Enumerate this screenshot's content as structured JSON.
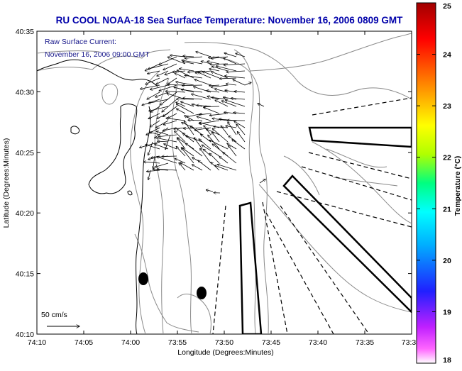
{
  "map": {
    "title": "RU COOL  NOAA-18  Sea Surface Temperature:  November 16, 2006 0809 GMT",
    "overlay_label_line1": "Raw Surface Current:",
    "overlay_label_line2": "November 16, 2006 09:00 GMT",
    "xlabel": "Longitude (Degrees:Minutes)",
    "ylabel": "Latitude (Degrees:Minutes)",
    "x_ticks": [
      "74:10",
      "74:05",
      "74:00",
      "73:55",
      "73:50",
      "73:45",
      "73:40",
      "73:35",
      "73:3"
    ],
    "y_ticks": [
      "40:35",
      "40:30",
      "40:25",
      "40:20",
      "40:15",
      "40:10"
    ],
    "scale_label": "50 cm/s"
  },
  "colorbar": {
    "label": "Temperature (°C)",
    "ticks": [
      "25",
      "24",
      "23",
      "22",
      "21",
      "20",
      "19",
      "18"
    ],
    "range": [
      18,
      25
    ],
    "colors": [
      "#ff66ff",
      "#c020ff",
      "#2020ff",
      "#00b0ff",
      "#00ffff",
      "#00ff80",
      "#b0ff00",
      "#ffff00",
      "#ff8000",
      "#ff0000",
      "#a00000"
    ]
  },
  "colors": {
    "title": "#0000aa",
    "overlay_label": "#1a1a8c",
    "contour": "#8a8a8a",
    "coast": "#000000"
  },
  "chart_data": {
    "type": "map",
    "title": "RU COOL  NOAA-18  Sea Surface Temperature:  November 16, 2006 0809 GMT",
    "xlabel": "Longitude (Degrees:Minutes)",
    "ylabel": "Latitude (Degrees:Minutes)",
    "x_ticks": [
      "74:10",
      "74:05",
      "74:00",
      "73:55",
      "73:50",
      "73:45",
      "73:40",
      "73:35",
      "73:3"
    ],
    "y_ticks": [
      "40:35",
      "40:30",
      "40:25",
      "40:20",
      "40:15",
      "40:10"
    ],
    "colorbar_range": [
      18,
      25
    ],
    "colorbar_label": "Temperature (°C)"
  }
}
